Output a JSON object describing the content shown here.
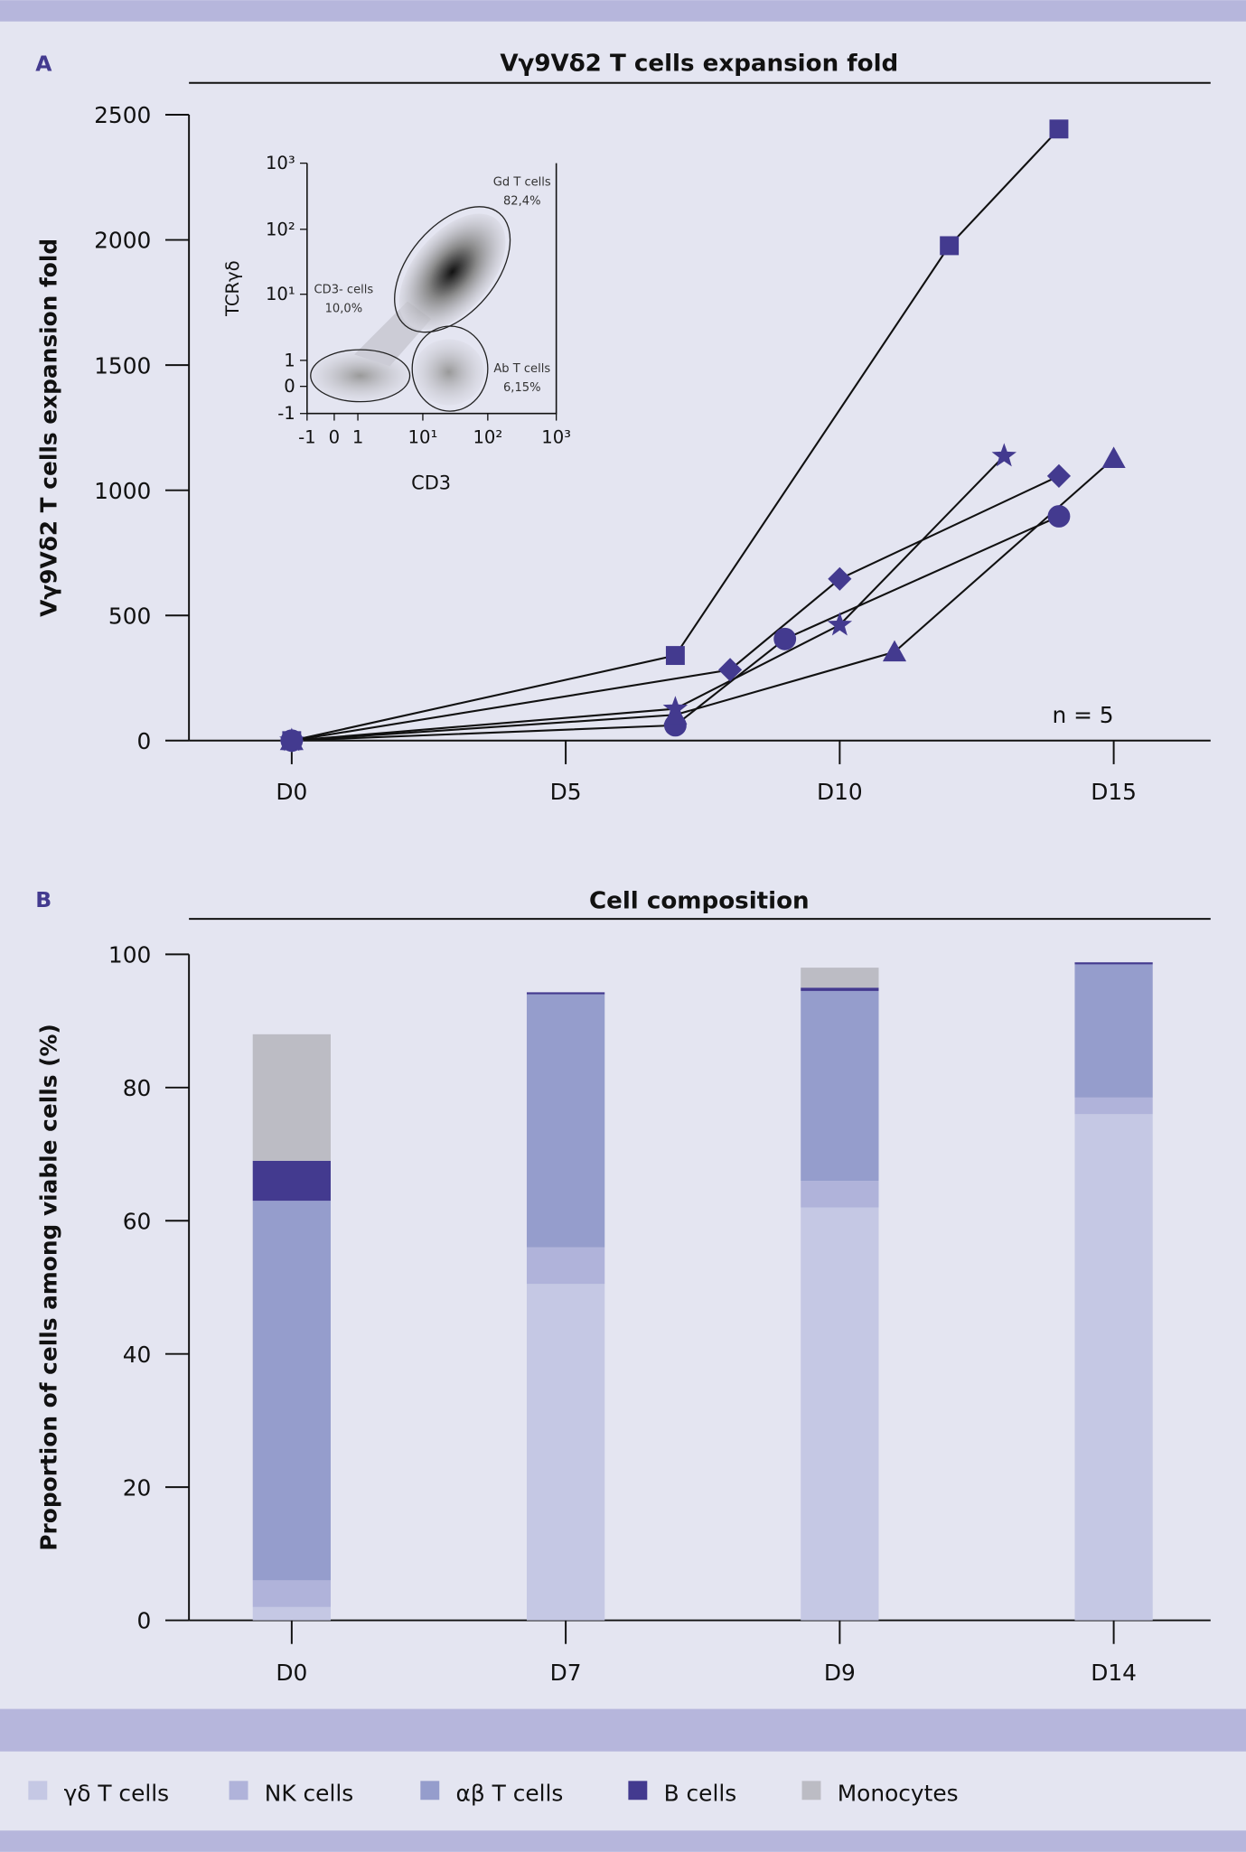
{
  "colors": {
    "background": "#e4e5f1",
    "band": "#b6b6dc",
    "marker": "#433a8f",
    "gd_t": "#c5c8e4",
    "nk": "#b0b3da",
    "ab_t": "#959dcc",
    "b_cells": "#433a8f",
    "monocytes": "#bcbcc4"
  },
  "chart_data": [
    {
      "panel": "A",
      "type": "line",
      "title": "Vγ9Vδ2 T cells expansion fold",
      "ylabel": "Vγ9Vδ2 T cells expansion fold",
      "xlabel": "",
      "x_ticks": [
        "D0",
        "D5",
        "D10",
        "D15"
      ],
      "x_tick_values": [
        0,
        5,
        10,
        15
      ],
      "y_ticks": [
        "0",
        "500",
        "1000",
        "1500",
        "2000",
        "2500"
      ],
      "ylim": [
        0,
        2500
      ],
      "xlim": [
        -2,
        18
      ],
      "annotation": "n = 5",
      "series": [
        {
          "marker": "square",
          "points": [
            [
              0,
              0
            ],
            [
              7,
              340
            ],
            [
              12,
              1977
            ],
            [
              14,
              2443
            ]
          ]
        },
        {
          "marker": "star",
          "points": [
            [
              0,
              0
            ],
            [
              7,
              127
            ],
            [
              10,
              462
            ],
            [
              13,
              1137
            ]
          ]
        },
        {
          "marker": "diamond",
          "points": [
            [
              0,
              0
            ],
            [
              8,
              283
            ],
            [
              10,
              646
            ],
            [
              14,
              1057
            ]
          ]
        },
        {
          "marker": "circle",
          "points": [
            [
              0,
              0
            ],
            [
              7,
              61
            ],
            [
              9,
              406
            ],
            [
              14,
              896
            ]
          ]
        },
        {
          "marker": "triangle",
          "points": [
            [
              0,
              0
            ],
            [
              7,
              103
            ],
            [
              11,
              354
            ],
            [
              15,
              1127
            ]
          ]
        }
      ],
      "inset": {
        "xlabel": "CD3",
        "ylabel": "TCRγδ",
        "x_ticks": [
          "-1",
          "0",
          "1",
          "10¹",
          "10²",
          "10³"
        ],
        "y_ticks": [
          "-1",
          "0",
          "1",
          "10¹",
          "10²",
          "10³"
        ],
        "gates": [
          {
            "name": "Gd T cells",
            "percent": "82,4%"
          },
          {
            "name": "CD3- cells",
            "percent": "10,0%"
          },
          {
            "name": "Ab T cells",
            "percent": "6,15%"
          }
        ]
      }
    },
    {
      "panel": "B",
      "type": "bar",
      "stacked": true,
      "title": "Cell composition",
      "ylabel": "Proportion of cells among viable cells (%)",
      "xlabel": "",
      "categories": [
        "D0",
        "D7",
        "D9",
        "D14"
      ],
      "y_ticks": [
        "0",
        "20",
        "40",
        "60",
        "80",
        "100"
      ],
      "ylim": [
        0,
        100
      ],
      "series": [
        {
          "name": "γδ T cells",
          "color_key": "gd_t",
          "values": [
            2,
            50.5,
            62,
            76
          ]
        },
        {
          "name": "NK cells",
          "color_key": "nk",
          "values": [
            4,
            5.5,
            4,
            2.5
          ]
        },
        {
          "name": "αβ T cells",
          "color_key": "ab_t",
          "values": [
            57,
            38,
            28.5,
            20
          ]
        },
        {
          "name": "B cells",
          "color_key": "b_cells",
          "values": [
            6,
            0.3,
            0.5,
            0.3
          ]
        },
        {
          "name": "Monocytes",
          "color_key": "monocytes",
          "values": [
            19,
            0,
            3,
            0
          ]
        }
      ]
    }
  ],
  "legend_position": "bottom"
}
